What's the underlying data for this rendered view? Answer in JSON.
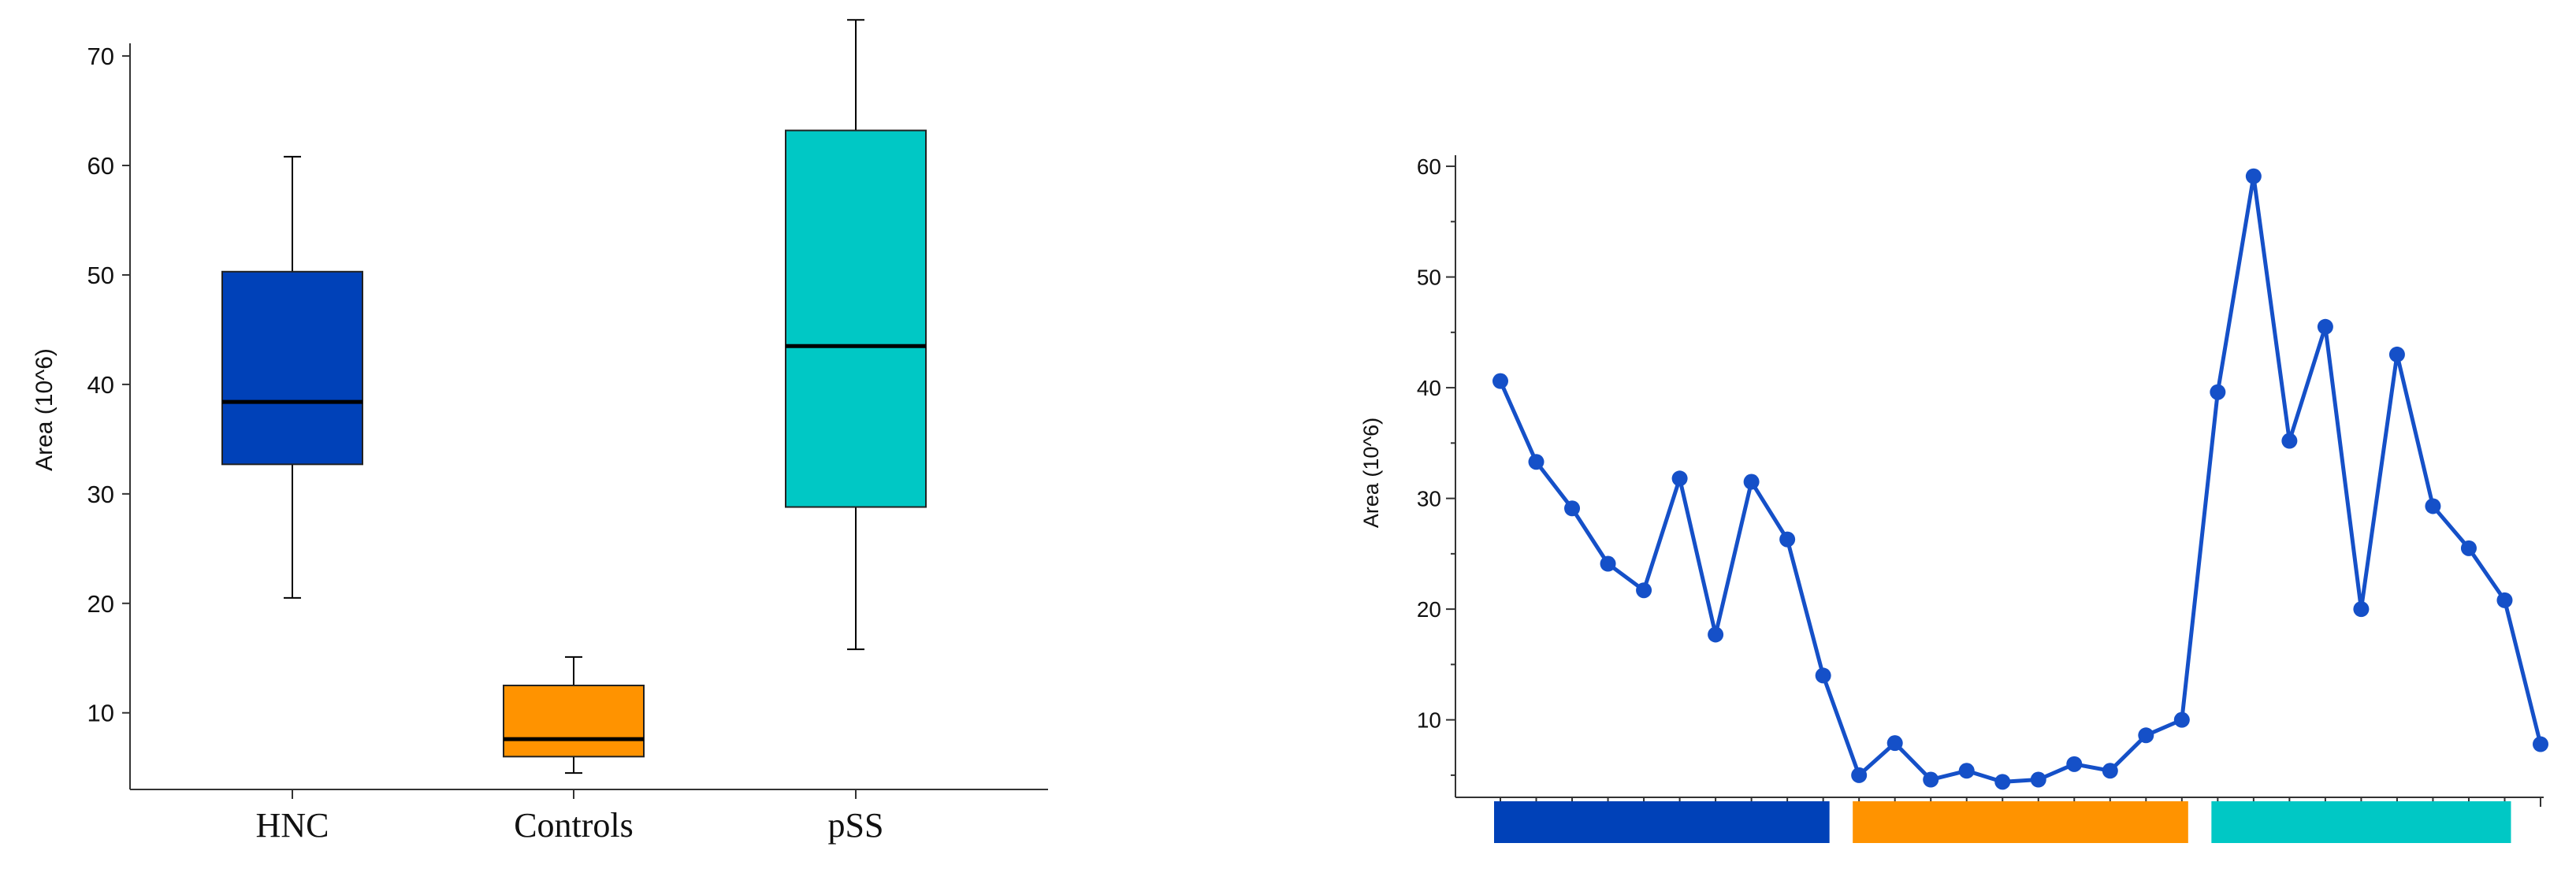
{
  "chart_data": [
    {
      "type": "boxplot",
      "ylabel": "Area (10^6)",
      "yticks": [
        10,
        20,
        30,
        40,
        50,
        60,
        70
      ],
      "ylim": [
        3,
        75
      ],
      "categories": [
        "HNC",
        "Controls",
        "pSS"
      ],
      "boxes": [
        {
          "label": "HNC",
          "whisker_low": 20.5,
          "q1": 32.7,
          "median": 38.4,
          "q3": 50.3,
          "whisker_high": 60.8,
          "color": "#0041B8"
        },
        {
          "label": "Controls",
          "whisker_low": 4.5,
          "q1": 6.0,
          "median": 7.6,
          "q3": 12.5,
          "whisker_high": 15.1,
          "color": "#FF9300"
        },
        {
          "label": "pSS",
          "whisker_low": 15.8,
          "q1": 28.8,
          "median": 43.5,
          "q3": 63.2,
          "whisker_high": 73.3,
          "color": "#00C8C5"
        }
      ]
    },
    {
      "type": "line",
      "ylabel": "Area (10^6)",
      "yticks": [
        10,
        20,
        30,
        40,
        50,
        60
      ],
      "ylim": [
        3,
        61
      ],
      "color": "#1550C8",
      "values": [
        40.6,
        33.3,
        29.1,
        24.1,
        21.7,
        31.8,
        17.7,
        31.5,
        26.3,
        14.0,
        5.0,
        7.9,
        4.6,
        5.4,
        4.4,
        4.6,
        6.0,
        5.4,
        8.6,
        10.0,
        39.6,
        59.1,
        35.2,
        45.5,
        20.0,
        43.0,
        29.3,
        25.5,
        20.8,
        7.8
      ],
      "groups": [
        {
          "start": 0,
          "end": 9,
          "color": "#0041B8"
        },
        {
          "start": 10,
          "end": 19,
          "color": "#FF9300"
        },
        {
          "start": 20,
          "end": 28,
          "color": "#00C8C5"
        }
      ]
    }
  ]
}
